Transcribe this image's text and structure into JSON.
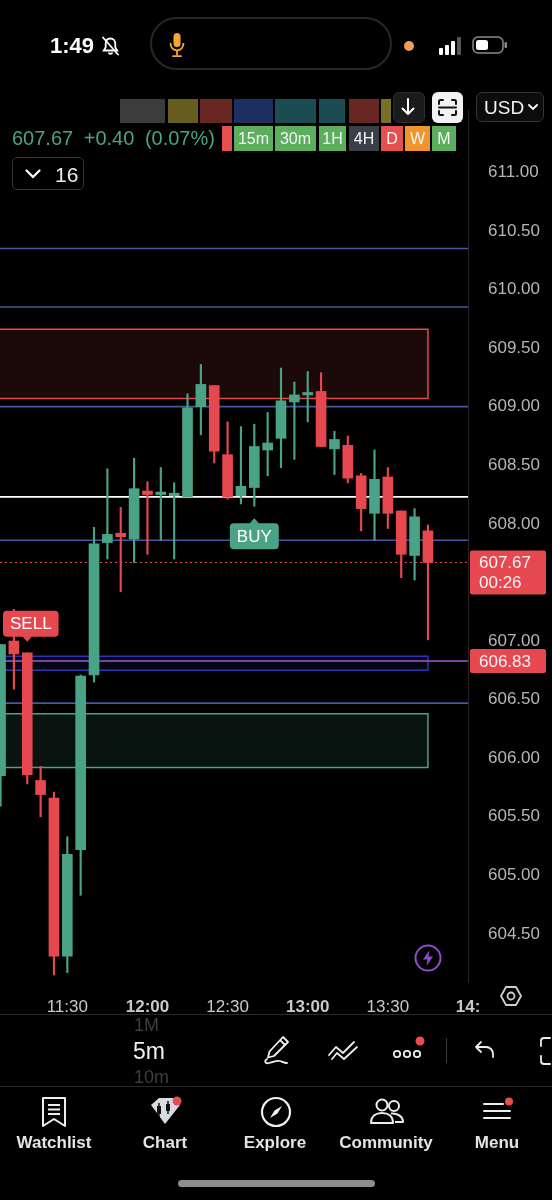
{
  "chart_data": {
    "type": "candlestick",
    "subtitle": "607.67 +0.40 (0.07%)",
    "x": [
      11.0833,
      11.1667,
      11.25,
      11.3333,
      11.4167,
      11.5,
      11.5833,
      11.6667,
      11.75,
      11.8333,
      11.9167,
      12,
      12.0833,
      12.1667,
      12.25,
      12.3333,
      12.4167,
      12.5,
      12.5833,
      12.6667,
      12.75,
      12.8333,
      12.9167,
      13,
      13.0833,
      13.1667,
      13.25,
      13.3333,
      13.4167,
      13.5,
      13.5833,
      13.6667,
      13.75
    ],
    "ohlc": [
      [
        605.85,
        606.97,
        605.59,
        606.97
      ],
      [
        607.0,
        607.27,
        606.59,
        606.89
      ],
      [
        606.9,
        606.9,
        605.78,
        605.86
      ],
      [
        605.81,
        605.93,
        605.5,
        605.69
      ],
      [
        605.66,
        605.71,
        604.15,
        604.31
      ],
      [
        604.31,
        605.33,
        604.17,
        605.18
      ],
      [
        605.22,
        606.71,
        604.83,
        606.7
      ],
      [
        606.71,
        607.97,
        606.65,
        607.83
      ],
      [
        607.84,
        608.47,
        607.7,
        607.91
      ],
      [
        607.92,
        608.14,
        607.42,
        607.89
      ],
      [
        607.87,
        608.56,
        607.67,
        608.3
      ],
      [
        608.28,
        608.36,
        607.74,
        608.25
      ],
      [
        608.25,
        608.48,
        607.86,
        608.26
      ],
      [
        608.24,
        608.35,
        607.7,
        608.25
      ],
      [
        608.23,
        609.11,
        608.23,
        608.99
      ],
      [
        609.0,
        609.36,
        608.76,
        609.19
      ],
      [
        609.18,
        609.18,
        608.52,
        608.62
      ],
      [
        608.59,
        608.87,
        608.21,
        608.23
      ],
      [
        608.24,
        608.83,
        608.17,
        608.32
      ],
      [
        608.31,
        608.85,
        608.15,
        608.66
      ],
      [
        608.63,
        608.95,
        608.41,
        608.69
      ],
      [
        608.73,
        609.33,
        608.48,
        609.05
      ],
      [
        609.04,
        609.21,
        608.55,
        609.1
      ],
      [
        609.1,
        609.3,
        608.87,
        609.11
      ],
      [
        609.13,
        609.29,
        608.66,
        608.66
      ],
      [
        608.64,
        608.79,
        608.42,
        608.72
      ],
      [
        608.67,
        608.75,
        608.35,
        608.39
      ],
      [
        608.41,
        608.43,
        607.94,
        608.13
      ],
      [
        608.09,
        608.63,
        607.86,
        608.38
      ],
      [
        608.4,
        608.48,
        607.96,
        608.09
      ],
      [
        608.11,
        608.11,
        607.54,
        607.74
      ],
      [
        607.73,
        608.13,
        607.52,
        608.06
      ],
      [
        607.94,
        607.99,
        607.01,
        607.67
      ]
    ],
    "colors": [
      "#4aa386",
      "#e6484f",
      "#e6484f",
      "#e6484f",
      "#e6484f",
      "#4aa386",
      "#4aa386",
      "#4aa386",
      "#4aa386",
      "#e6484f",
      "#4aa386",
      "#e6484f",
      "#4aa386",
      "#4aa386",
      "#4aa386",
      "#4aa386",
      "#e6484f",
      "#e6484f",
      "#4aa386",
      "#4aa386",
      "#4aa386",
      "#4aa386",
      "#4aa386",
      "#4aa386",
      "#e6484f",
      "#4aa386",
      "#e6484f",
      "#e6484f",
      "#4aa386",
      "#e6484f",
      "#e6484f",
      "#4aa386",
      "#e6484f"
    ],
    "xlim": [
      11.08,
      14.0
    ],
    "xticks": [
      {
        "value": 11.5,
        "label": "11:30"
      },
      {
        "value": 12,
        "label": "12:00"
      },
      {
        "value": 12.5,
        "label": "12:30"
      },
      {
        "value": 13,
        "label": "13:00"
      },
      {
        "value": 13.5,
        "label": "13:30"
      },
      {
        "value": 14,
        "label": "14:"
      }
    ],
    "ylim": [
      604.09,
      611.53
    ],
    "yticks": [
      {
        "value": 611,
        "label": "611.00"
      },
      {
        "value": 610.5,
        "label": "610.50"
      },
      {
        "value": 610,
        "label": "610.00"
      },
      {
        "value": 609.5,
        "label": "609.50"
      },
      {
        "value": 609,
        "label": "609.00"
      },
      {
        "value": 608.5,
        "label": "608.50"
      },
      {
        "value": 608,
        "label": "608.00"
      },
      {
        "value": 607,
        "label": "607.00"
      },
      {
        "value": 606.5,
        "label": "606.50"
      },
      {
        "value": 606,
        "label": "606.00"
      },
      {
        "value": 605.5,
        "label": "605.50"
      },
      {
        "value": 605,
        "label": "605.00"
      },
      {
        "value": 604.5,
        "label": "604.50"
      }
    ],
    "ref_lines": [
      {
        "axis": "y",
        "value": 610.35,
        "color": "#46589e"
      },
      {
        "axis": "y",
        "value": 609.85,
        "color": "#46589e"
      },
      {
        "axis": "y",
        "value": 609.0,
        "color": "#46589e"
      },
      {
        "axis": "y",
        "value": 608.23,
        "color": "#ffffff"
      },
      {
        "axis": "y",
        "value": 607.86,
        "color": "#46589e"
      },
      {
        "axis": "y",
        "value": 607.67,
        "label": "607.67",
        "color": "#e6484f",
        "line_style": "dotted"
      },
      {
        "axis": "y",
        "value": 606.83,
        "label": "606.83",
        "color": "#9b5bd4"
      },
      {
        "axis": "y",
        "value": 606.47,
        "color": "#46589e"
      }
    ],
    "bands": [
      {
        "axis": "y",
        "from": 609.07,
        "to": 609.66,
        "color": "#e6484f"
      },
      {
        "axis": "y",
        "from": 605.92,
        "to": 606.38,
        "color": "#4aa386"
      },
      {
        "axis": "y",
        "from": 606.75,
        "to": 606.87,
        "color": "#2f34b0"
      }
    ],
    "annotations": [
      "1:49",
      "16",
      "15m",
      "30m",
      "1H",
      "4H",
      "D",
      "W",
      "M",
      "USD",
      "1M",
      "5m",
      "10m",
      "Watchlist",
      "Chart",
      "Explore",
      "Community",
      "Menu",
      "00:26",
      {
        "text": "SELL",
        "x": 11.25,
        "y": 606.9
      },
      {
        "text": "BUY",
        "x": 12.6667,
        "y": 608.15
      }
    ]
  }
}
